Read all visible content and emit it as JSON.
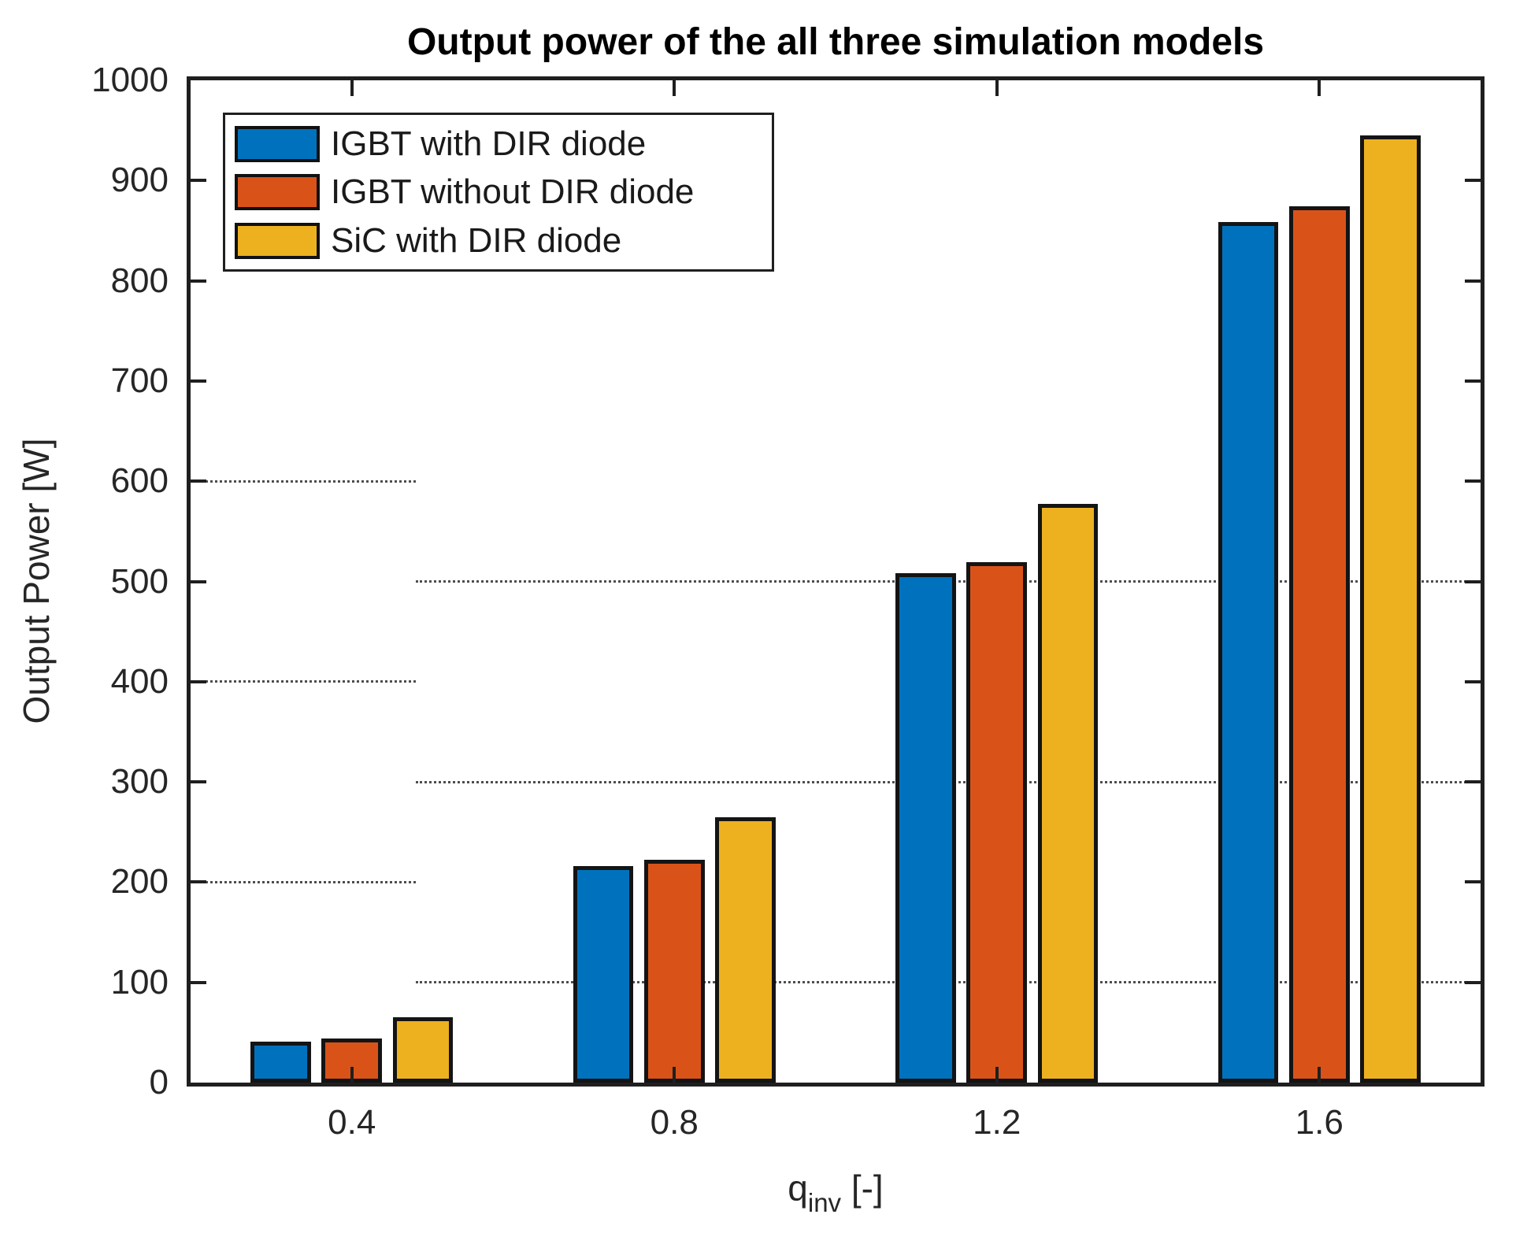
{
  "figure": {
    "title": "Output power of the all three simulation models"
  },
  "axes": {
    "ylabel": "Output Power [W]",
    "xlabel": {
      "base": "q",
      "sub": "inv",
      "suffix": " [-]"
    }
  },
  "chart_data": {
    "type": "bar",
    "title": "Output power of the all three simulation models",
    "xlabel": "q_inv [-]",
    "ylabel": "Output Power [W]",
    "categories": [
      "0.4",
      "0.8",
      "1.2",
      "1.6"
    ],
    "x": [
      0.4,
      0.8,
      1.2,
      1.6
    ],
    "series": [
      {
        "name": "IGBT with DIR diode",
        "color": "#0072BD",
        "values": [
          41,
          216,
          508,
          859
        ]
      },
      {
        "name": "IGBT without DIR diode",
        "color": "#D95319",
        "values": [
          44,
          222,
          519,
          874
        ]
      },
      {
        "name": "SiC with DIR diode",
        "color": "#EDB120",
        "values": [
          65,
          265,
          577,
          945
        ]
      }
    ],
    "xlim": [
      0.2,
      1.8
    ],
    "ylim": [
      0,
      1000
    ],
    "ytick_step": 100,
    "yticks": [
      "0",
      "100",
      "200",
      "300",
      "400",
      "500",
      "600",
      "700",
      "800",
      "900",
      "1000"
    ],
    "legend_position": "top-left-inside",
    "grid": {
      "style": "dotted",
      "left_segment_values": [
        200,
        400,
        600
      ],
      "right_segment_values": [
        100,
        300,
        500
      ],
      "split_fraction": 0.1746
    },
    "bar_layout": {
      "width_fraction": 0.047,
      "pitch_fraction": 0.0551
    },
    "colors": {
      "axis": "#1f1f1f",
      "bar_edge": "#141414",
      "grid": "#4d4d4d"
    }
  }
}
